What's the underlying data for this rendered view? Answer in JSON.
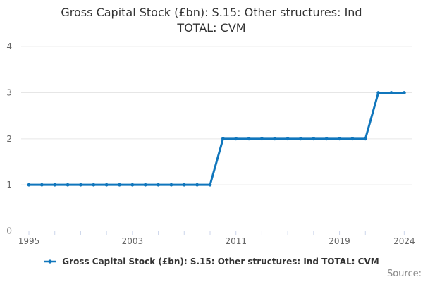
{
  "title": {
    "text": "Gross Capital Stock (£bn): S.15: Other structures: Ind TOTAL: CVM",
    "lines": [
      "Gross Capital Stock (£bn): S.15: Other structures: Ind",
      "TOTAL: CVM"
    ]
  },
  "legend": {
    "label": "Gross Capital Stock (£bn): S.15: Other structures: Ind TOTAL: CVM",
    "marker_icon": "line-dot-marker-icon"
  },
  "footer": {
    "source_label": "Source:"
  },
  "colors": {
    "series_blue": "#1076bc",
    "gridline": "#e6e6e6",
    "axis_line": "#ccd6eb",
    "axis_label": "#666666",
    "title_text": "#333333",
    "source_text": "#888888",
    "background": "#ffffff"
  },
  "chart_data": {
    "type": "line",
    "title": "Gross Capital Stock (£bn): S.15: Other structures: Ind TOTAL: CVM",
    "xlabel": "",
    "ylabel": "",
    "grid": "horizontal-only",
    "legend_position": "bottom-center",
    "x": [
      1995,
      1996,
      1997,
      1998,
      1999,
      2000,
      2001,
      2002,
      2003,
      2004,
      2005,
      2006,
      2007,
      2008,
      2009,
      2010,
      2011,
      2012,
      2013,
      2014,
      2015,
      2016,
      2017,
      2018,
      2019,
      2020,
      2021,
      2022,
      2023,
      2024
    ],
    "series": [
      {
        "name": "Gross Capital Stock (£bn): S.15: Other structures: Ind TOTAL: CVM",
        "color": "#1076bc",
        "marker": "circle",
        "values": [
          1,
          1,
          1,
          1,
          1,
          1,
          1,
          1,
          1,
          1,
          1,
          1,
          1,
          1,
          1,
          2,
          2,
          2,
          2,
          2,
          2,
          2,
          2,
          2,
          2,
          2,
          2,
          3,
          3,
          3
        ]
      }
    ],
    "x_axis": {
      "range": [
        1994.4,
        2024.6
      ],
      "tick_years": [
        1995,
        1997,
        1999,
        2001,
        2003,
        2005,
        2007,
        2009,
        2011,
        2013,
        2015,
        2017,
        2019,
        2021,
        2024
      ],
      "label_years": [
        "1995",
        "2003",
        "2011",
        "2019",
        "2024"
      ]
    },
    "y_axis": {
      "min": 0,
      "max": 4,
      "ticks": [
        "0",
        "1",
        "2",
        "3",
        "4"
      ]
    }
  }
}
